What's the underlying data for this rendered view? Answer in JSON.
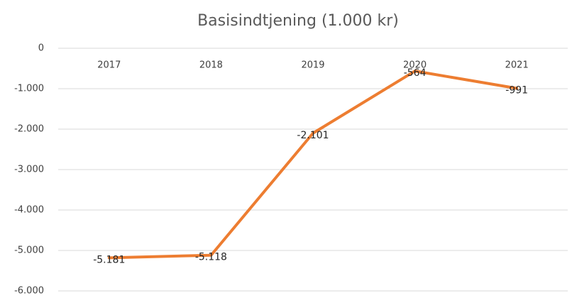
{
  "chart_data": {
    "type": "line",
    "title": "Basisindtjening (1.000 kr)",
    "categories": [
      "2017",
      "2018",
      "2019",
      "2020",
      "2021"
    ],
    "series": [
      {
        "name": "Basisindtjening",
        "color": "#ed7d31",
        "values": [
          -5181,
          -5118,
          -2101,
          -564,
          -991
        ],
        "value_labels": [
          "-5.181",
          "-5.118",
          "-2.101",
          "-564",
          "-991"
        ]
      }
    ],
    "ylim": [
      -6000,
      0
    ],
    "yticks": [
      0,
      {
        "value": -1000,
        "label": "-1.000"
      },
      {
        "value": -2000,
        "label": "-2.000"
      },
      {
        "value": -3000,
        "label": "-3.000"
      },
      {
        "value": -4000,
        "label": "-4.000"
      },
      {
        "value": -5000,
        "label": "-5.000"
      },
      {
        "value": -6000,
        "label": "-6.000"
      }
    ],
    "grid": true
  }
}
